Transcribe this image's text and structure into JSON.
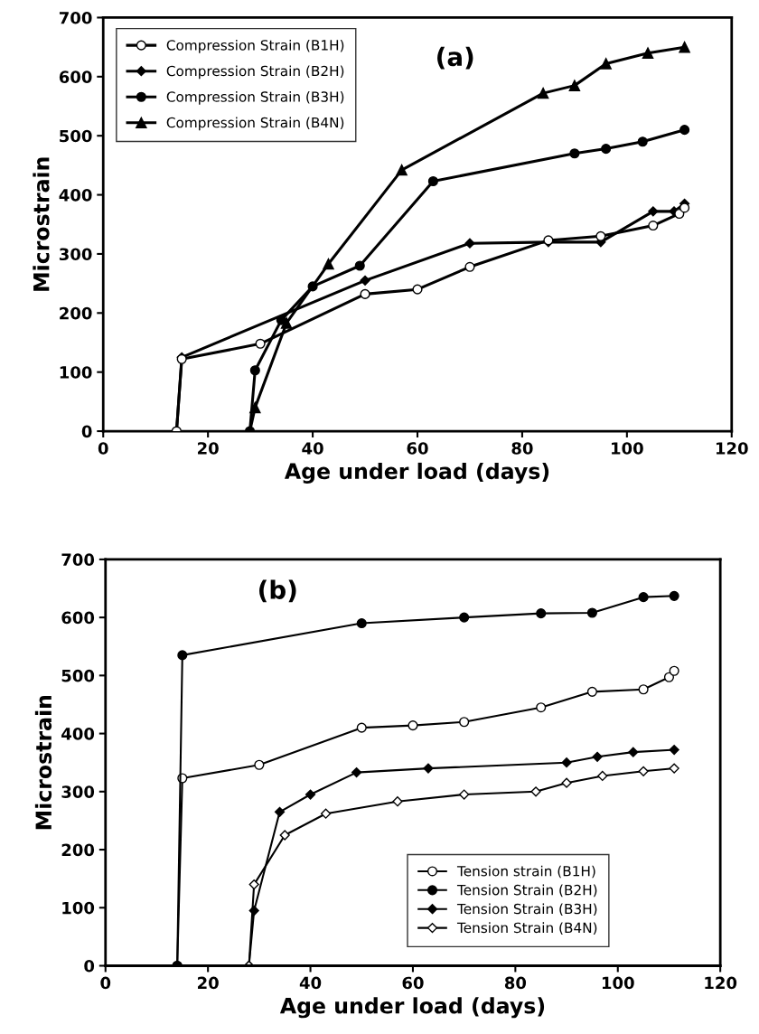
{
  "chart_data": [
    {
      "type": "line",
      "xlabel": "Age under load (days)",
      "ylabel": "Microstrain",
      "annotations": [
        "(a)"
      ],
      "xlim": [
        0,
        120
      ],
      "ylim": [
        0,
        700
      ],
      "xticks": [
        0,
        20,
        40,
        60,
        80,
        100,
        120
      ],
      "yticks": [
        0,
        100,
        200,
        300,
        400,
        500,
        600,
        700
      ],
      "legend": "top left",
      "grid": false,
      "line_style": "solid",
      "series": [
        {
          "name": "Compression Strain (B1H)",
          "color": "#000000",
          "marker": "circle",
          "x": [
            14,
            15,
            30,
            50,
            60,
            70,
            85,
            95,
            105,
            110,
            111
          ],
          "values": [
            0,
            122,
            148,
            232,
            240,
            278,
            323,
            330,
            348,
            368,
            378
          ]
        },
        {
          "name": "Compression Strain (B2H)",
          "color": "#000000",
          "marker": "diamond",
          "x": [
            14,
            15,
            50,
            70,
            85,
            95,
            105,
            109,
            111
          ],
          "values": [
            0,
            125,
            255,
            318,
            320,
            320,
            372,
            372,
            385
          ]
        },
        {
          "name": "Compression Strain (B3H)",
          "color": "#000000",
          "marker": "circle",
          "x": [
            28,
            29,
            34,
            40,
            49,
            63,
            90,
            96,
            103,
            111
          ],
          "values": [
            0,
            103,
            188,
            245,
            280,
            423,
            470,
            478,
            490,
            510
          ]
        },
        {
          "name": "Compression Strain (B4N)",
          "color": "#000000",
          "marker": "triangle",
          "x": [
            28,
            29,
            35,
            43,
            57,
            84,
            90,
            96,
            104,
            111
          ],
          "values": [
            0,
            40,
            183,
            283,
            442,
            572,
            585,
            622,
            640,
            650
          ]
        }
      ]
    },
    {
      "type": "line",
      "xlabel": "Age under load (days)",
      "ylabel": "Microstrain",
      "annotations": [
        "(b)"
      ],
      "xlim": [
        0,
        120
      ],
      "ylim": [
        0,
        700
      ],
      "xticks": [
        0,
        20,
        40,
        60,
        80,
        100,
        120
      ],
      "yticks": [
        0,
        100,
        200,
        300,
        400,
        500,
        600,
        700
      ],
      "legend": "bottom right",
      "grid": false,
      "line_style": "solid",
      "series": [
        {
          "name": "Tension strain (B1H)",
          "color": "#000000",
          "marker": "circle",
          "x": [
            14,
            15,
            30,
            50,
            60,
            70,
            85,
            95,
            105,
            110,
            111
          ],
          "values": [
            0,
            323,
            346,
            410,
            414,
            420,
            445,
            472,
            476,
            497,
            508
          ]
        },
        {
          "name": "Tension Strain (B2H)",
          "color": "#000000",
          "marker": "circle",
          "x": [
            14,
            15,
            50,
            70,
            85,
            95,
            105,
            111
          ],
          "values": [
            0,
            535,
            590,
            600,
            607,
            608,
            635,
            637
          ]
        },
        {
          "name": "Tension Strain (B3H)",
          "color": "#000000",
          "marker": "diamond",
          "x": [
            28,
            29,
            34,
            40,
            49,
            63,
            90,
            96,
            103,
            111
          ],
          "values": [
            0,
            95,
            265,
            295,
            333,
            340,
            350,
            360,
            368,
            372
          ]
        },
        {
          "name": "Tension Strain (B4N)",
          "color": "#000000",
          "marker": "diamond",
          "x": [
            28,
            29,
            35,
            43,
            57,
            70,
            84,
            90,
            97,
            105,
            111
          ],
          "values": [
            0,
            140,
            225,
            262,
            283,
            295,
            300,
            315,
            327,
            335,
            340
          ]
        }
      ]
    }
  ]
}
